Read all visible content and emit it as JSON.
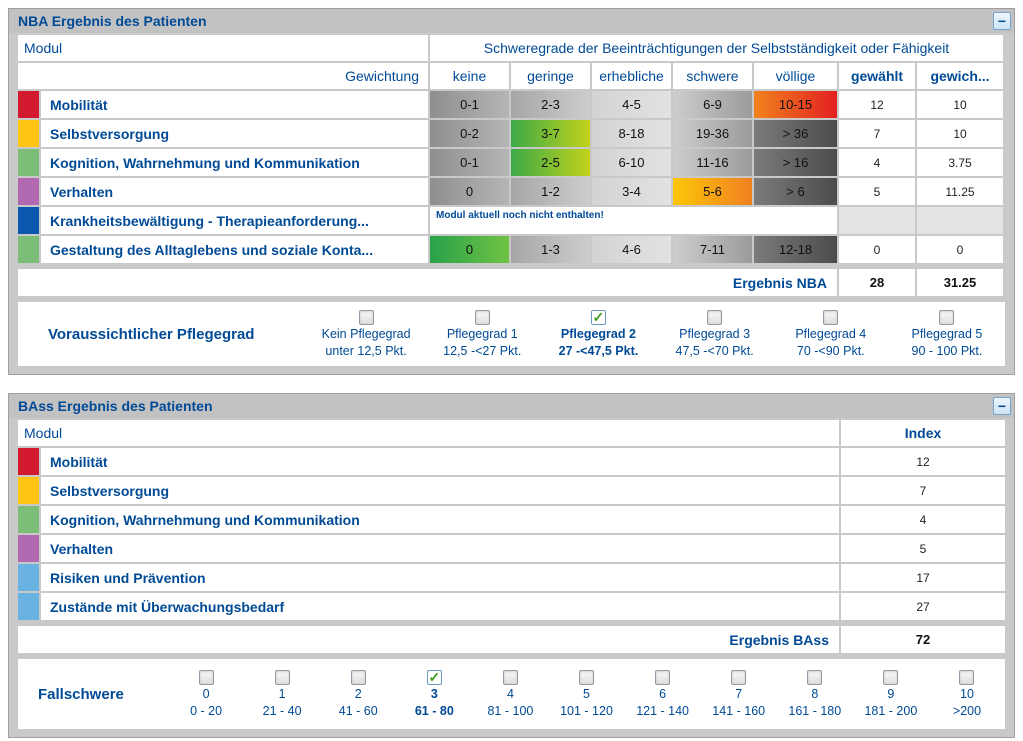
{
  "icons": {
    "collapse": "−",
    "checkmark": "✓"
  },
  "colors": {
    "accent_blue": "#004a96",
    "mobilitaet": "#d2192d",
    "selbstversorgung": "#fdc413",
    "kognition": "#7cbd78",
    "verhalten": "#b16ab2",
    "krankheitsbewaeltigung": "#0a57b0",
    "gestaltung": "#7cbd78",
    "risiken": "#6ab2e2",
    "zustaende": "#6ab2e2",
    "selected_red": "#e32020",
    "selected_green": "#3caa47",
    "selected_orange": "#ef8121"
  },
  "nba": {
    "title": "NBA Ergebnis des Patienten",
    "col_modul": "Modul",
    "col_schweregrade": "Schweregrade der Beeinträchtigungen der Selbstständigkeit oder Fähigkeit",
    "col_gewichtung": "Gewichtung",
    "grade_headers": [
      "keine",
      "geringe",
      "erhebliche",
      "schwere",
      "völlige"
    ],
    "col_gewaehlt": "gewählt",
    "col_gewichtet": "gewich...",
    "rows": [
      {
        "name": "Mobilität",
        "color": "#d2192d",
        "grades": [
          "0-1",
          "2-3",
          "4-5",
          "6-9",
          "10-15"
        ],
        "selected": 4,
        "gewaehlt": "12",
        "gewichtet": "10"
      },
      {
        "name": "Selbstversorgung",
        "color": "#fdc413",
        "grades": [
          "0-2",
          "3-7",
          "8-18",
          "19-36",
          "> 36"
        ],
        "selected": 1,
        "gewaehlt": "7",
        "gewichtet": "10"
      },
      {
        "name": "Kognition, Wahrnehmung und Kommunikation",
        "color": "#7cbd78",
        "grades": [
          "0-1",
          "2-5",
          "6-10",
          "11-16",
          "> 16"
        ],
        "selected": 1,
        "gewaehlt": "4",
        "gewichtet": "3.75"
      },
      {
        "name": "Verhalten",
        "color": "#b16ab2",
        "grades": [
          "0",
          "1-2",
          "3-4",
          "5-6",
          "> 6"
        ],
        "selected": 3,
        "gewaehlt": "5",
        "gewichtet": "11.25"
      },
      {
        "name": "Krankheitsbewältigung - Therapieanforderung...",
        "color": "#0a57b0",
        "note": "Modul aktuell noch nicht enthalten!",
        "gewaehlt": "",
        "gewichtet": ""
      },
      {
        "name": "Gestaltung des Alltaglebens und soziale Konta...",
        "color": "#7cbd78",
        "grades": [
          "0",
          "1-3",
          "4-6",
          "7-11",
          "12-18"
        ],
        "selected": 0,
        "gewaehlt": "0",
        "gewichtet": "0"
      }
    ],
    "result_label": "Ergebnis NBA",
    "result_gewaehlt": "28",
    "result_gewichtet": "31.25",
    "pflegegrad_label": "Voraussichtlicher Pflegegrad",
    "pflegegrade": [
      {
        "line1": "Kein Pflegegrad",
        "line2": "unter 12,5 Pkt.",
        "checked": false
      },
      {
        "line1": "Pflegegrad 1",
        "line2": "12,5 -<27 Pkt.",
        "checked": false
      },
      {
        "line1": "Pflegegrad 2",
        "line2": "27 -<47,5 Pkt.",
        "checked": true
      },
      {
        "line1": "Pflegegrad 3",
        "line2": "47,5 -<70 Pkt.",
        "checked": false
      },
      {
        "line1": "Pflegegrad 4",
        "line2": "70 -<90 Pkt.",
        "checked": false
      },
      {
        "line1": "Pflegegrad 5",
        "line2": "90 - 100 Pkt.",
        "checked": false
      }
    ]
  },
  "bass": {
    "title": "BAss Ergebnis des Patienten",
    "col_modul": "Modul",
    "col_index": "Index",
    "rows": [
      {
        "name": "Mobilität",
        "color": "#d2192d",
        "index": "12"
      },
      {
        "name": "Selbstversorgung",
        "color": "#fdc413",
        "index": "7"
      },
      {
        "name": "Kognition, Wahrnehmung und Kommunikation",
        "color": "#7cbd78",
        "index": "4"
      },
      {
        "name": "Verhalten",
        "color": "#b16ab2",
        "index": "5"
      },
      {
        "name": "Risiken und Prävention",
        "color": "#6ab2e2",
        "index": "17"
      },
      {
        "name": "Zustände mit Überwachungsbedarf",
        "color": "#6ab2e2",
        "index": "27"
      }
    ],
    "result_label": "Ergebnis BAss",
    "result_index": "72",
    "fallschwere_label": "Fallschwere",
    "fallschwere": [
      {
        "num": "0",
        "range": "0 - 20",
        "checked": false
      },
      {
        "num": "1",
        "range": "21 - 40",
        "checked": false
      },
      {
        "num": "2",
        "range": "41 - 60",
        "checked": false
      },
      {
        "num": "3",
        "range": "61 - 80",
        "checked": true
      },
      {
        "num": "4",
        "range": "81 - 100",
        "checked": false
      },
      {
        "num": "5",
        "range": "101 - 120",
        "checked": false
      },
      {
        "num": "6",
        "range": "121 - 140",
        "checked": false
      },
      {
        "num": "7",
        "range": "141 - 160",
        "checked": false
      },
      {
        "num": "8",
        "range": "161 - 180",
        "checked": false
      },
      {
        "num": "9",
        "range": "181 - 200",
        "checked": false
      },
      {
        "num": "10",
        "range": ">200",
        "checked": false
      }
    ]
  }
}
